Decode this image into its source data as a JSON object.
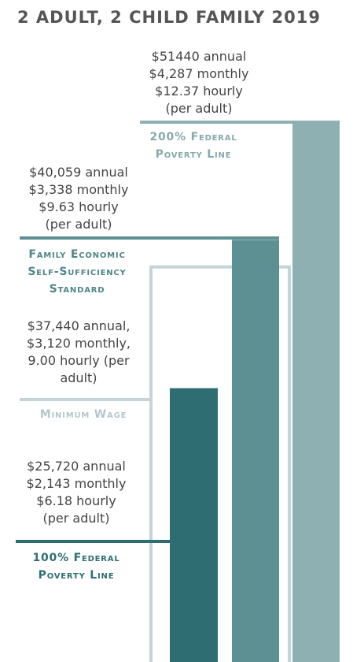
{
  "chart_data": {
    "type": "bar",
    "title": "2 ADULT, 2 CHILD FAMILY 2019",
    "categories": [
      "100% Federal Poverty Line",
      "Minimum Wage",
      "Family Economic Self-Sufficiency Standard",
      "200% Federal Poverty Line"
    ],
    "values": [
      25720,
      37440,
      40059,
      51440
    ],
    "value_labels": [
      "$25,720 annual",
      "$37,440 annual,",
      "$40,059 annual",
      "$51440 annual"
    ],
    "detail_lines": [
      [
        "$2,143 monthly",
        "$6.18 hourly",
        "(per adult)"
      ],
      [
        "$3,120 monthly,",
        "9.00 hourly (per",
        "adult)"
      ],
      [
        "$3,338 monthly",
        "$9.63 hourly",
        "(per adult)"
      ],
      [
        "$4,287 monthly",
        "$12.37 hourly",
        "(per adult)"
      ]
    ],
    "colors": [
      "#2e6e72",
      "#c4d4d7",
      "#5d9093",
      "#8fb0b3"
    ],
    "bar_styles": [
      "fill",
      "outline",
      "fill",
      "fill"
    ],
    "name_colors": [
      "#2e6e72",
      "#b3c8cb",
      "#4f8588",
      "#86a9ac"
    ],
    "ylim": [
      0,
      51440
    ]
  }
}
